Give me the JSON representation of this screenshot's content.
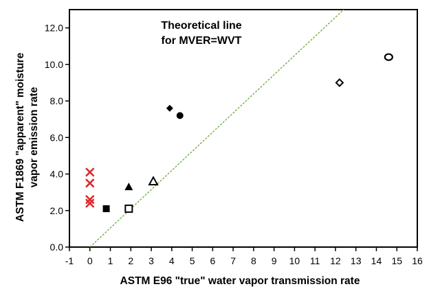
{
  "chart_data": {
    "type": "scatter",
    "title": "",
    "xlabel": "ASTM E96 \"true\" water vapor transmission rate",
    "ylabel": [
      "ASTM F1869 \"apparent\" moisture",
      "vapor emission rate"
    ],
    "xlim": [
      -1,
      16
    ],
    "ylim": [
      0,
      13
    ],
    "x_ticks": [
      "-1",
      "0",
      "1",
      "2",
      "3",
      "4",
      "5",
      "6",
      "7",
      "8",
      "9",
      "10",
      "11",
      "12",
      "13",
      "14",
      "15",
      "16"
    ],
    "y_ticks": [
      "0.0",
      "2.0",
      "4.0",
      "6.0",
      "8.0",
      "10.0",
      "12.0"
    ],
    "grid": false,
    "annotation": [
      "Theoretical line",
      "for MVER=WVT"
    ],
    "reference_line": {
      "style": "dashed",
      "color": "#6aaa3a",
      "from": [
        0,
        0
      ],
      "to": [
        12.4,
        13
      ]
    },
    "series": [
      {
        "marker": "x",
        "color": "#e0282e",
        "points": [
          [
            0,
            4.1
          ],
          [
            0,
            3.5
          ],
          [
            0,
            2.6
          ],
          [
            0,
            2.4
          ]
        ]
      },
      {
        "marker": "square-filled",
        "color": "#000000",
        "points": [
          [
            0.8,
            2.1
          ]
        ]
      },
      {
        "marker": "square-open",
        "color": "#000000",
        "points": [
          [
            1.9,
            2.1
          ]
        ]
      },
      {
        "marker": "triangle-filled",
        "color": "#000000",
        "points": [
          [
            1.9,
            3.3
          ]
        ]
      },
      {
        "marker": "triangle-open",
        "color": "#000000",
        "points": [
          [
            3.1,
            3.6
          ]
        ]
      },
      {
        "marker": "diamond-filled",
        "color": "#000000",
        "points": [
          [
            3.9,
            7.6
          ]
        ]
      },
      {
        "marker": "circle-filled",
        "color": "#000000",
        "points": [
          [
            4.4,
            7.2
          ]
        ]
      },
      {
        "marker": "diamond-open",
        "color": "#000000",
        "points": [
          [
            12.2,
            9.0
          ]
        ]
      },
      {
        "marker": "circle-open",
        "color": "#000000",
        "points": [
          [
            14.6,
            10.4
          ]
        ]
      }
    ]
  }
}
